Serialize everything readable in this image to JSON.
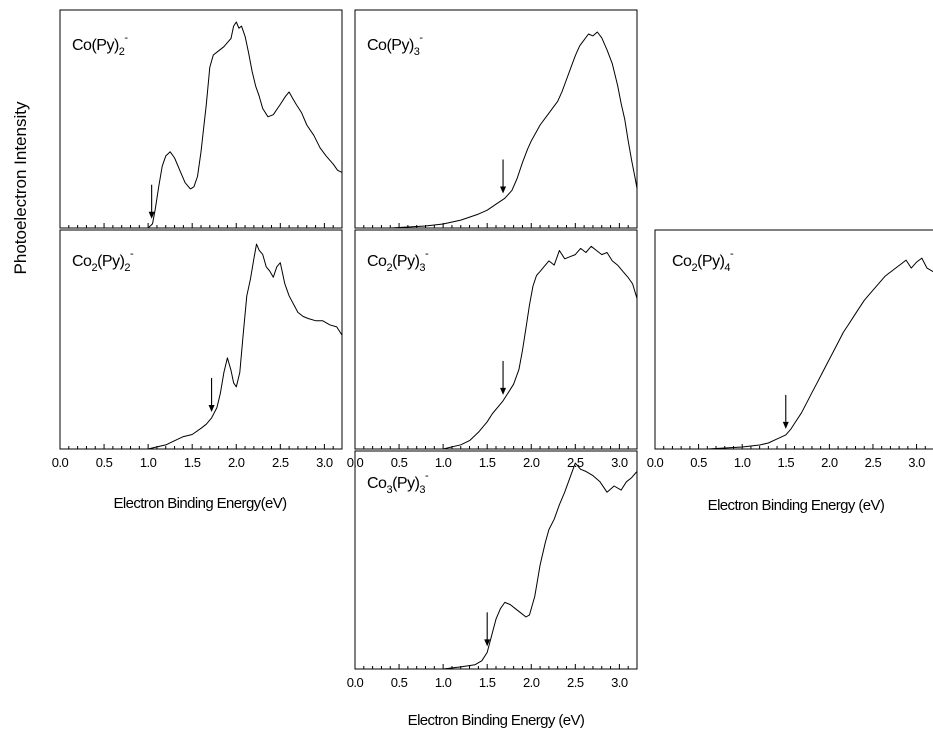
{
  "ylabel": "Photoelectron Intensity",
  "xlabel_left": "Electron Binding Energy(eV)",
  "xlabel_middle": "Electron Binding Energy (eV)",
  "xlabel_right": "Electron Binding Energy (eV)",
  "chart_data": [
    {
      "id": "co-py2",
      "type": "line",
      "label": {
        "base": "Co",
        "sub1": "",
        "mid": "(Py)",
        "sub2": "2",
        "sup": "-"
      },
      "xlim": [
        0,
        3.2
      ],
      "ylim": [
        0,
        1
      ],
      "arrow_x": 1.04,
      "x": [
        0.0,
        0.9,
        1.0,
        1.05,
        1.08,
        1.12,
        1.16,
        1.2,
        1.25,
        1.3,
        1.36,
        1.42,
        1.48,
        1.52,
        1.56,
        1.6,
        1.66,
        1.7,
        1.74,
        1.8,
        1.86,
        1.9,
        1.94,
        1.97,
        2.0,
        2.03,
        2.06,
        2.1,
        2.14,
        2.18,
        2.22,
        2.26,
        2.3,
        2.36,
        2.42,
        2.5,
        2.56,
        2.6,
        2.64,
        2.68,
        2.74,
        2.8,
        2.88,
        2.95,
        3.02,
        3.1,
        3.15,
        3.2
      ],
      "y": [
        0.0,
        0.0,
        0.0,
        0.02,
        0.09,
        0.2,
        0.3,
        0.35,
        0.37,
        0.34,
        0.28,
        0.22,
        0.19,
        0.2,
        0.25,
        0.37,
        0.6,
        0.78,
        0.84,
        0.86,
        0.88,
        0.9,
        0.92,
        0.98,
        1.0,
        0.97,
        0.98,
        0.93,
        0.85,
        0.76,
        0.69,
        0.64,
        0.58,
        0.54,
        0.55,
        0.6,
        0.64,
        0.66,
        0.63,
        0.6,
        0.56,
        0.5,
        0.45,
        0.39,
        0.35,
        0.31,
        0.28,
        0.27
      ]
    },
    {
      "id": "co-py3",
      "type": "line",
      "label": {
        "base": "Co",
        "sub1": "",
        "mid": "(Py)",
        "sub2": "3",
        "sup": "-"
      },
      "xlim": [
        0,
        3.2
      ],
      "ylim": [
        0,
        1
      ],
      "arrow_x": 1.68,
      "x": [
        0.0,
        0.4,
        0.8,
        1.0,
        1.2,
        1.4,
        1.5,
        1.6,
        1.7,
        1.78,
        1.84,
        1.9,
        1.96,
        2.0,
        2.05,
        2.1,
        2.15,
        2.2,
        2.25,
        2.3,
        2.35,
        2.4,
        2.45,
        2.5,
        2.55,
        2.6,
        2.65,
        2.7,
        2.75,
        2.8,
        2.86,
        2.92,
        2.98,
        3.02,
        3.06,
        3.1,
        3.14,
        3.18,
        3.2
      ],
      "y": [
        0.0,
        0.0,
        0.01,
        0.02,
        0.04,
        0.07,
        0.09,
        0.12,
        0.15,
        0.19,
        0.25,
        0.33,
        0.4,
        0.44,
        0.48,
        0.52,
        0.55,
        0.58,
        0.61,
        0.64,
        0.69,
        0.75,
        0.81,
        0.87,
        0.92,
        0.95,
        0.98,
        0.97,
        0.99,
        0.96,
        0.9,
        0.83,
        0.72,
        0.63,
        0.55,
        0.44,
        0.34,
        0.25,
        0.2
      ]
    },
    {
      "id": "co2-py2",
      "type": "line",
      "label": {
        "base": "Co",
        "sub1": "2",
        "mid": "(Py)",
        "sub2": "2",
        "sup": "-"
      },
      "xlim": [
        0,
        3.2
      ],
      "ylim": [
        0,
        1
      ],
      "arrow_x": 1.72,
      "x": [
        0.0,
        0.8,
        1.0,
        1.1,
        1.2,
        1.3,
        1.4,
        1.5,
        1.6,
        1.66,
        1.72,
        1.78,
        1.82,
        1.86,
        1.9,
        1.94,
        1.97,
        2.0,
        2.04,
        2.08,
        2.12,
        2.16,
        2.2,
        2.23,
        2.26,
        2.3,
        2.34,
        2.38,
        2.42,
        2.46,
        2.5,
        2.55,
        2.6,
        2.65,
        2.7,
        2.76,
        2.82,
        2.9,
        2.98,
        3.06,
        3.14,
        3.2
      ],
      "y": [
        0.0,
        0.0,
        0.0,
        0.01,
        0.02,
        0.04,
        0.06,
        0.07,
        0.1,
        0.12,
        0.15,
        0.2,
        0.27,
        0.37,
        0.44,
        0.38,
        0.32,
        0.3,
        0.37,
        0.56,
        0.74,
        0.82,
        0.92,
        0.99,
        0.96,
        0.94,
        0.88,
        0.86,
        0.83,
        0.88,
        0.9,
        0.8,
        0.74,
        0.7,
        0.66,
        0.64,
        0.63,
        0.62,
        0.62,
        0.6,
        0.59,
        0.55
      ]
    },
    {
      "id": "co2-py3",
      "type": "line",
      "label": {
        "base": "Co",
        "sub1": "2",
        "mid": "(Py)",
        "sub2": "3",
        "sup": "-"
      },
      "xlim": [
        0,
        3.2
      ],
      "ylim": [
        0,
        1
      ],
      "arrow_x": 1.68,
      "x": [
        0.0,
        0.6,
        1.0,
        1.2,
        1.3,
        1.4,
        1.5,
        1.56,
        1.62,
        1.68,
        1.74,
        1.8,
        1.86,
        1.9,
        1.94,
        1.98,
        2.02,
        2.06,
        2.1,
        2.14,
        2.2,
        2.26,
        2.32,
        2.38,
        2.44,
        2.5,
        2.56,
        2.62,
        2.68,
        2.74,
        2.8,
        2.86,
        2.92,
        2.98,
        3.04,
        3.1,
        3.15,
        3.2
      ],
      "y": [
        0.0,
        0.0,
        0.0,
        0.02,
        0.04,
        0.08,
        0.13,
        0.17,
        0.2,
        0.23,
        0.27,
        0.31,
        0.38,
        0.47,
        0.58,
        0.69,
        0.78,
        0.83,
        0.85,
        0.87,
        0.9,
        0.88,
        0.95,
        0.91,
        0.92,
        0.93,
        0.96,
        0.94,
        0.97,
        0.95,
        0.93,
        0.94,
        0.9,
        0.88,
        0.85,
        0.82,
        0.79,
        0.72
      ]
    },
    {
      "id": "co2-py4",
      "type": "line",
      "label": {
        "base": "Co",
        "sub1": "2",
        "mid": "(Py)",
        "sub2": "4",
        "sup": "-"
      },
      "xlim": [
        0,
        3.2
      ],
      "ylim": [
        0,
        1
      ],
      "arrow_x": 1.5,
      "x": [
        0.0,
        0.6,
        1.0,
        1.2,
        1.3,
        1.4,
        1.5,
        1.56,
        1.62,
        1.68,
        1.74,
        1.8,
        1.86,
        1.92,
        1.98,
        2.04,
        2.1,
        2.16,
        2.22,
        2.28,
        2.34,
        2.4,
        2.46,
        2.52,
        2.58,
        2.64,
        2.7,
        2.76,
        2.82,
        2.88,
        2.94,
        3.0,
        3.06,
        3.12,
        3.2
      ],
      "y": [
        0.0,
        0.0,
        0.01,
        0.02,
        0.03,
        0.05,
        0.07,
        0.1,
        0.14,
        0.18,
        0.23,
        0.28,
        0.33,
        0.38,
        0.43,
        0.48,
        0.53,
        0.58,
        0.62,
        0.66,
        0.7,
        0.74,
        0.77,
        0.8,
        0.83,
        0.86,
        0.88,
        0.9,
        0.92,
        0.94,
        0.9,
        0.93,
        0.95,
        0.9,
        0.88
      ]
    },
    {
      "id": "co3-py3",
      "type": "line",
      "label": {
        "base": "Co",
        "sub1": "3",
        "mid": "(Py)",
        "sub2": "3",
        "sup": "-"
      },
      "xlim": [
        0,
        3.2
      ],
      "ylim": [
        0,
        1
      ],
      "arrow_x": 1.5,
      "x": [
        0.0,
        0.6,
        1.0,
        1.2,
        1.36,
        1.44,
        1.5,
        1.55,
        1.6,
        1.65,
        1.7,
        1.76,
        1.82,
        1.88,
        1.94,
        1.98,
        2.04,
        2.1,
        2.16,
        2.2,
        2.26,
        2.32,
        2.38,
        2.44,
        2.5,
        2.56,
        2.62,
        2.7,
        2.78,
        2.86,
        2.94,
        3.02,
        3.08,
        3.14,
        3.2
      ],
      "y": [
        0.0,
        0.0,
        0.0,
        0.01,
        0.02,
        0.04,
        0.08,
        0.16,
        0.24,
        0.29,
        0.32,
        0.31,
        0.29,
        0.27,
        0.25,
        0.26,
        0.35,
        0.5,
        0.61,
        0.67,
        0.72,
        0.79,
        0.85,
        0.92,
        0.99,
        0.96,
        0.95,
        0.93,
        0.9,
        0.85,
        0.88,
        0.86,
        0.9,
        0.92,
        0.95
      ]
    }
  ]
}
